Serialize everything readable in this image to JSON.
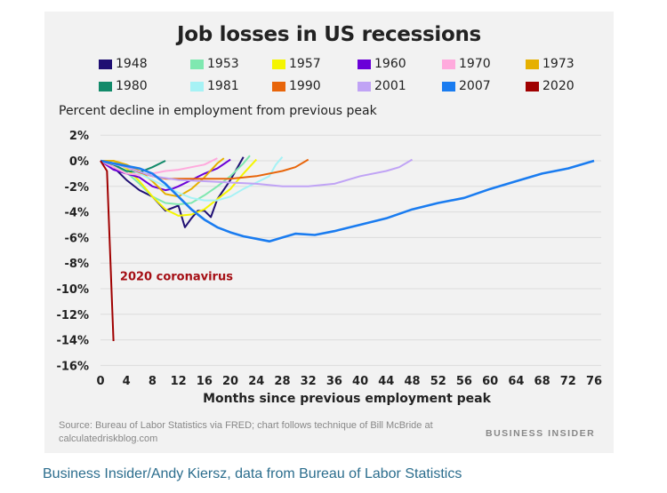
{
  "caption": "Business Insider/Andy Kiersz, data from Bureau of Labor Statistics",
  "source": "Source: Bureau of Labor Statistics via FRED; chart follows technique of Bill McBride at calculatedriskblog.com",
  "brand": "BUSINESS INSIDER",
  "chart_data": {
    "type": "line",
    "title": "Job losses in US recessions",
    "ylabel": "Percent decline in employment from previous peak",
    "xlabel": "Months since previous employment peak",
    "xlim": [
      0,
      76
    ],
    "ylim": [
      -16,
      2
    ],
    "xticks": [
      0,
      4,
      8,
      12,
      16,
      20,
      24,
      28,
      32,
      36,
      40,
      44,
      48,
      52,
      56,
      60,
      64,
      68,
      72,
      76
    ],
    "yticks": [
      2,
      0,
      -2,
      -4,
      -6,
      -8,
      -10,
      -12,
      -14,
      -16
    ],
    "ytick_labels": [
      "2%",
      "0%",
      "-2%",
      "-4%",
      "-6%",
      "-8%",
      "-10%",
      "-12%",
      "-14%",
      "-16%"
    ],
    "grid": true,
    "legend_placement": "top",
    "annotation": {
      "text": "2020 coronavirus",
      "color": "#a50f15",
      "x": 3,
      "y": -9
    },
    "series": [
      {
        "name": "1948",
        "color": "#1f0f73",
        "points": [
          [
            0,
            0
          ],
          [
            2,
            -0.5
          ],
          [
            4,
            -1.5
          ],
          [
            6,
            -2.3
          ],
          [
            8,
            -2.8
          ],
          [
            10,
            -3.9
          ],
          [
            11,
            -3.7
          ],
          [
            12,
            -3.5
          ],
          [
            13,
            -5.2
          ],
          [
            14,
            -4.5
          ],
          [
            15,
            -3.9
          ],
          [
            16,
            -3.9
          ],
          [
            17,
            -4.4
          ],
          [
            18,
            -3.0
          ],
          [
            20,
            -1.5
          ],
          [
            22,
            0.3
          ]
        ]
      },
      {
        "name": "1953",
        "color": "#7fe8b0",
        "points": [
          [
            0,
            0
          ],
          [
            2,
            -0.3
          ],
          [
            4,
            -0.9
          ],
          [
            6,
            -1.8
          ],
          [
            8,
            -2.8
          ],
          [
            10,
            -3.3
          ],
          [
            12,
            -3.4
          ],
          [
            14,
            -3.3
          ],
          [
            16,
            -2.7
          ],
          [
            18,
            -2.0
          ],
          [
            20,
            -1.2
          ],
          [
            22,
            -0.2
          ],
          [
            23,
            0.4
          ]
        ]
      },
      {
        "name": "1957",
        "color": "#f5f500",
        "points": [
          [
            0,
            0
          ],
          [
            2,
            0
          ],
          [
            4,
            -0.6
          ],
          [
            6,
            -1.6
          ],
          [
            8,
            -2.8
          ],
          [
            10,
            -3.8
          ],
          [
            12,
            -4.3
          ],
          [
            14,
            -4.2
          ],
          [
            16,
            -3.8
          ],
          [
            18,
            -3.0
          ],
          [
            20,
            -2.2
          ],
          [
            22,
            -1.0
          ],
          [
            24,
            0.1
          ]
        ]
      },
      {
        "name": "1960",
        "color": "#6a00d8",
        "points": [
          [
            0,
            0
          ],
          [
            2,
            -0.7
          ],
          [
            4,
            -1.0
          ],
          [
            6,
            -1.3
          ],
          [
            8,
            -2.0
          ],
          [
            10,
            -2.3
          ],
          [
            11,
            -2.2
          ],
          [
            12,
            -2.0
          ],
          [
            14,
            -1.5
          ],
          [
            16,
            -1.0
          ],
          [
            18,
            -0.6
          ],
          [
            20,
            0.1
          ]
        ]
      },
      {
        "name": "1970",
        "color": "#ffaadd",
        "points": [
          [
            0,
            0
          ],
          [
            2,
            -0.5
          ],
          [
            4,
            -1.0
          ],
          [
            6,
            -1.1
          ],
          [
            8,
            -1.0
          ],
          [
            10,
            -0.8
          ],
          [
            12,
            -0.7
          ],
          [
            14,
            -0.5
          ],
          [
            16,
            -0.3
          ],
          [
            18,
            0.2
          ]
        ]
      },
      {
        "name": "1973",
        "color": "#e6b000",
        "points": [
          [
            0,
            0
          ],
          [
            2,
            0
          ],
          [
            4,
            -0.3
          ],
          [
            6,
            -0.8
          ],
          [
            8,
            -1.6
          ],
          [
            10,
            -2.6
          ],
          [
            12,
            -2.8
          ],
          [
            14,
            -2.2
          ],
          [
            16,
            -1.3
          ],
          [
            18,
            -0.2
          ],
          [
            19,
            0.2
          ]
        ]
      },
      {
        "name": "1980",
        "color": "#128a6a",
        "points": [
          [
            0,
            0
          ],
          [
            2,
            -0.3
          ],
          [
            4,
            -0.8
          ],
          [
            6,
            -0.9
          ],
          [
            8,
            -0.5
          ],
          [
            10,
            0.0
          ]
        ]
      },
      {
        "name": "1981",
        "color": "#a6f2f5",
        "points": [
          [
            0,
            0
          ],
          [
            2,
            -0.2
          ],
          [
            4,
            -0.5
          ],
          [
            6,
            -1.0
          ],
          [
            8,
            -1.5
          ],
          [
            10,
            -2.0
          ],
          [
            12,
            -2.5
          ],
          [
            14,
            -2.9
          ],
          [
            16,
            -3.1
          ],
          [
            18,
            -3.1
          ],
          [
            20,
            -2.8
          ],
          [
            22,
            -2.2
          ],
          [
            24,
            -1.7
          ],
          [
            26,
            -1.2
          ],
          [
            27,
            -0.3
          ],
          [
            28,
            0.3
          ]
        ]
      },
      {
        "name": "1990",
        "color": "#e8650a",
        "points": [
          [
            0,
            0
          ],
          [
            2,
            -0.2
          ],
          [
            4,
            -0.5
          ],
          [
            6,
            -0.9
          ],
          [
            8,
            -1.2
          ],
          [
            10,
            -1.4
          ],
          [
            12,
            -1.4
          ],
          [
            16,
            -1.4
          ],
          [
            20,
            -1.4
          ],
          [
            24,
            -1.2
          ],
          [
            28,
            -0.8
          ],
          [
            30,
            -0.5
          ],
          [
            32,
            0.1
          ]
        ]
      },
      {
        "name": "2001",
        "color": "#c0a3f5",
        "points": [
          [
            0,
            0
          ],
          [
            4,
            -0.5
          ],
          [
            8,
            -1.2
          ],
          [
            12,
            -1.5
          ],
          [
            16,
            -1.6
          ],
          [
            20,
            -1.7
          ],
          [
            24,
            -1.8
          ],
          [
            28,
            -2.0
          ],
          [
            32,
            -2.0
          ],
          [
            36,
            -1.8
          ],
          [
            40,
            -1.2
          ],
          [
            44,
            -0.8
          ],
          [
            46,
            -0.5
          ],
          [
            48,
            0.1
          ]
        ]
      },
      {
        "name": "2007",
        "color": "#1a7cf0",
        "points": [
          [
            0,
            0
          ],
          [
            2,
            -0.2
          ],
          [
            4,
            -0.4
          ],
          [
            6,
            -0.6
          ],
          [
            8,
            -1.0
          ],
          [
            10,
            -1.8
          ],
          [
            12,
            -2.8
          ],
          [
            14,
            -3.8
          ],
          [
            16,
            -4.6
          ],
          [
            18,
            -5.2
          ],
          [
            20,
            -5.6
          ],
          [
            22,
            -5.9
          ],
          [
            24,
            -6.1
          ],
          [
            26,
            -6.3
          ],
          [
            28,
            -6.0
          ],
          [
            30,
            -5.7
          ],
          [
            33,
            -5.8
          ],
          [
            36,
            -5.5
          ],
          [
            40,
            -5.0
          ],
          [
            44,
            -4.5
          ],
          [
            48,
            -3.8
          ],
          [
            52,
            -3.3
          ],
          [
            56,
            -2.9
          ],
          [
            60,
            -2.2
          ],
          [
            64,
            -1.6
          ],
          [
            68,
            -1.0
          ],
          [
            72,
            -0.6
          ],
          [
            76,
            0
          ]
        ]
      },
      {
        "name": "2020",
        "color": "#a00000",
        "points": [
          [
            0,
            0
          ],
          [
            1,
            -0.8
          ],
          [
            2,
            -14.1
          ]
        ]
      }
    ]
  }
}
